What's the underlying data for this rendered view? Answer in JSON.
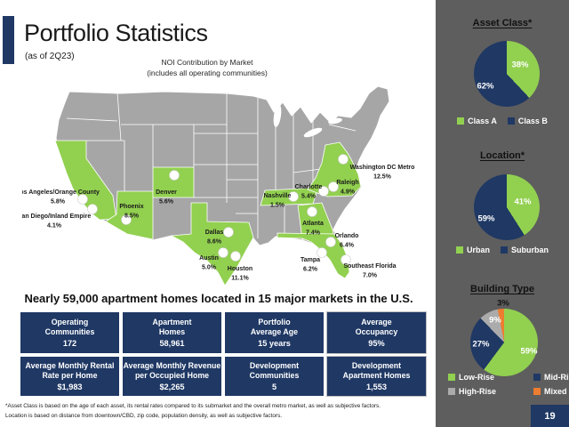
{
  "slide": {
    "title": "Portfolio Statistics",
    "date_note": "(as of 2Q23)",
    "page_number": "19"
  },
  "map": {
    "caption_line1": "NOI Contribution by Market",
    "caption_line2": "(includes all operating communities)",
    "markets": [
      {
        "name": "Los Angeles/Orange County",
        "share": "5.8%"
      },
      {
        "name": "San Diego/Inland Empire",
        "share": "4.1%"
      },
      {
        "name": "Phoenix",
        "share": "8.5%"
      },
      {
        "name": "Denver",
        "share": "5.6%"
      },
      {
        "name": "Dallas",
        "share": "8.6%"
      },
      {
        "name": "Austin",
        "share": "5.0%"
      },
      {
        "name": "Houston",
        "share": "11.1%"
      },
      {
        "name": "Nashville",
        "share": "1.5%"
      },
      {
        "name": "Charlotte",
        "share": "5.4%"
      },
      {
        "name": "Raleigh",
        "share": "4.9%"
      },
      {
        "name": "Washington DC Metro",
        "share": "12.5%"
      },
      {
        "name": "Atlanta",
        "share": "7.4%"
      },
      {
        "name": "Orlando",
        "share": "6.4%"
      },
      {
        "name": "Tampa",
        "share": "6.2%"
      },
      {
        "name": "Southeast Florida",
        "share": "7.0%"
      }
    ]
  },
  "headline": "Nearly 59,000 apartment homes located in 15 major markets in the U.S.",
  "stats_row1": [
    {
      "label": "Operating\nCommunities",
      "value": "172"
    },
    {
      "label": "Apartment\nHomes",
      "value": "58,961"
    },
    {
      "label": "Portfolio\nAverage Age",
      "value": "15 years"
    },
    {
      "label": "Average\nOccupancy",
      "value": "95%"
    }
  ],
  "stats_row2": [
    {
      "label": "Average Monthly Rental\nRate per Home",
      "value": "$1,983"
    },
    {
      "label": "Average Monthly Revenue\nper Occupied Home",
      "value": "$2,265"
    },
    {
      "label": "Development\nCommunities",
      "value": "5"
    },
    {
      "label": "Development\nApartment Homes",
      "value": "1,553"
    }
  ],
  "footnote": {
    "line1": "*Asset Class is based on the age of each asset, its rental rates compared to its submarket and the overall metro market, as well as subjective factors.",
    "line2": "Location is based on distance from downtown/CBD, zip code, population density, as well as subjective factors."
  },
  "colors": {
    "green": "#92d050",
    "navy": "#1f3864",
    "gray": "#ababab",
    "orange": "#ed7d31",
    "sidebar_bg": "#5e5e5e",
    "map_state_gray": "#a6a6a6"
  },
  "chart_data": [
    {
      "type": "pie",
      "title": "Asset Class*",
      "labels": [
        "Class A",
        "Class B"
      ],
      "values": [
        38,
        62
      ],
      "value_labels": [
        "38%",
        "62%"
      ],
      "colors": [
        "#92d050",
        "#1f3864"
      ],
      "legend_position": "bottom"
    },
    {
      "type": "pie",
      "title": "Location*",
      "labels": [
        "Urban",
        "Suburban"
      ],
      "values": [
        41,
        59
      ],
      "value_labels": [
        "41%",
        "59%"
      ],
      "colors": [
        "#92d050",
        "#1f3864"
      ],
      "legend_position": "bottom"
    },
    {
      "type": "pie",
      "title": "Building Type",
      "labels": [
        "Low-Rise",
        "Mid-Rise",
        "High-Rise",
        "Mixed"
      ],
      "values": [
        59,
        27,
        9,
        3
      ],
      "value_labels": [
        "59%",
        "27%",
        "9%",
        "3%"
      ],
      "colors": [
        "#92d050",
        "#1f3864",
        "#ababab",
        "#ed7d31"
      ],
      "legend_position": "bottom"
    },
    {
      "type": "map",
      "title": "NOI Contribution by Market (includes all operating communities)",
      "unit": "%",
      "categories": [
        "Los Angeles/Orange County",
        "San Diego/Inland Empire",
        "Phoenix",
        "Denver",
        "Dallas",
        "Austin",
        "Houston",
        "Nashville",
        "Charlotte",
        "Raleigh",
        "Washington DC Metro",
        "Atlanta",
        "Orlando",
        "Tampa",
        "Southeast Florida"
      ],
      "values": [
        5.8,
        4.1,
        8.5,
        5.6,
        8.6,
        5.0,
        11.1,
        1.5,
        5.4,
        4.9,
        12.5,
        7.4,
        6.4,
        6.2,
        7.0
      ]
    }
  ]
}
